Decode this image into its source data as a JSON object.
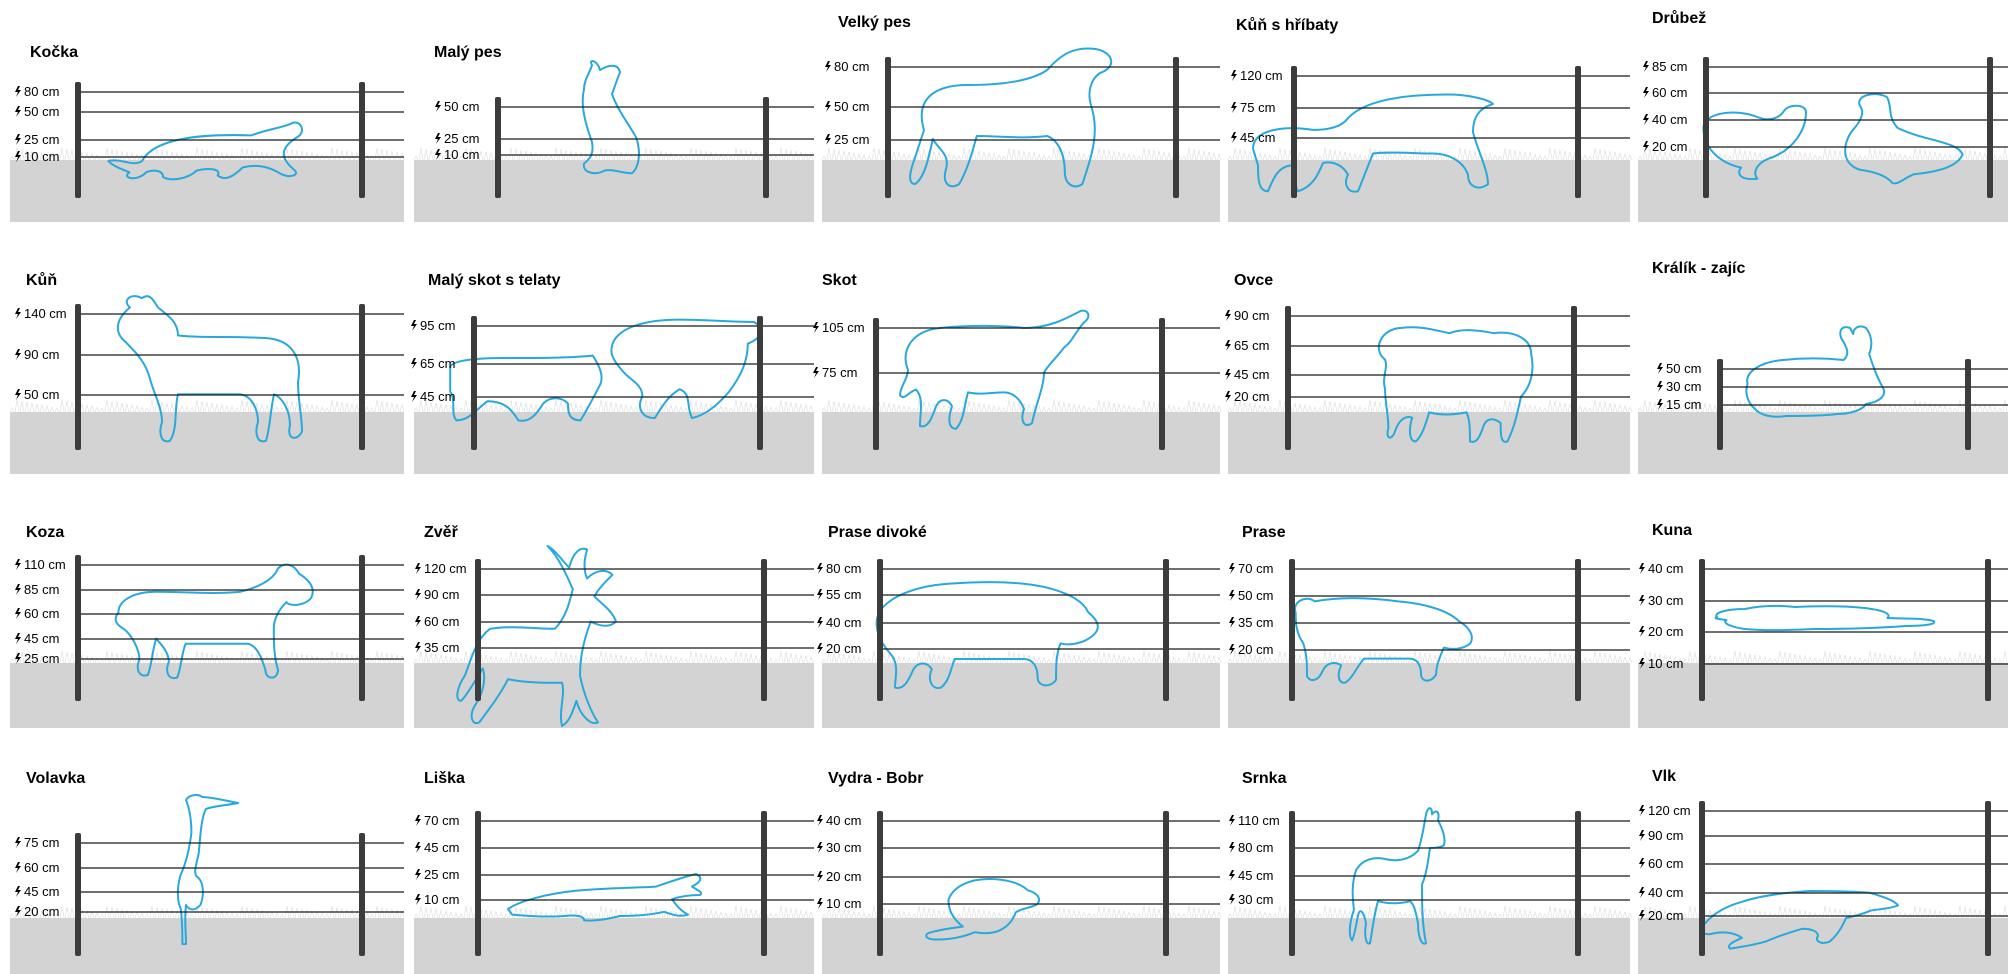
{
  "colors": {
    "animal_outline": "#29a8dc",
    "ground": "#d3d3d3",
    "post": "#3c3c3c",
    "wire": "#1a1a1a",
    "grass": "#ffffff"
  },
  "panels": [
    {
      "id": "kocka",
      "title": "Kočka",
      "animal_icon": "cat-outline-icon",
      "wires": [
        "80 cm",
        "50 cm",
        "25 cm",
        "10 cm"
      ]
    },
    {
      "id": "maly-pes",
      "title": "Malý pes",
      "animal_icon": "small-dog-outline-icon",
      "wires": [
        "50 cm",
        "25 cm",
        "10 cm"
      ]
    },
    {
      "id": "velky-pes",
      "title": "Velký pes",
      "animal_icon": "large-dog-outline-icon",
      "wires": [
        "80 cm",
        "50 cm",
        "25 cm"
      ]
    },
    {
      "id": "kun-s-hribaty",
      "title": "Kůň s hříbaty",
      "animal_icon": "horse-with-foal-outline-icon",
      "wires": [
        "120 cm",
        "75 cm",
        "45 cm"
      ]
    },
    {
      "id": "drubez",
      "title": "Drůbež",
      "animal_icon": "poultry-outline-icon",
      "wires": [
        "85 cm",
        "60 cm",
        "40 cm",
        "20 cm"
      ]
    },
    {
      "id": "kun",
      "title": "Kůň",
      "animal_icon": "horse-outline-icon",
      "wires": [
        "140 cm",
        "90 cm",
        "50 cm"
      ]
    },
    {
      "id": "maly-skot",
      "title": "Malý skot s telaty",
      "animal_icon": "small-cattle-with-calves-outline-icon",
      "wires": [
        "95 cm",
        "65 cm",
        "45 cm"
      ]
    },
    {
      "id": "skot",
      "title": "Skot",
      "animal_icon": "cattle-outline-icon",
      "wires": [
        "105 cm",
        "75 cm"
      ]
    },
    {
      "id": "ovce",
      "title": "Ovce",
      "animal_icon": "sheep-outline-icon",
      "wires": [
        "90 cm",
        "65 cm",
        "45 cm",
        "20 cm"
      ]
    },
    {
      "id": "kralik",
      "title": "Králík - zajíc",
      "animal_icon": "rabbit-outline-icon",
      "wires": [
        "50 cm",
        "30 cm",
        "15 cm"
      ]
    },
    {
      "id": "koza",
      "title": "Koza",
      "animal_icon": "goat-outline-icon",
      "wires": [
        "110 cm",
        "85 cm",
        "60 cm",
        "45 cm",
        "25 cm"
      ]
    },
    {
      "id": "zver",
      "title": "Zvěř",
      "animal_icon": "deer-outline-icon",
      "wires": [
        "120 cm",
        "90 cm",
        "60 cm",
        "35 cm"
      ]
    },
    {
      "id": "prase-divoke",
      "title": "Prase divoké",
      "animal_icon": "wild-boar-outline-icon",
      "wires": [
        "80 cm",
        "55 cm",
        "40 cm",
        "20 cm"
      ]
    },
    {
      "id": "prase",
      "title": "Prase",
      "animal_icon": "pig-outline-icon",
      "wires": [
        "70 cm",
        "50 cm",
        "35 cm",
        "20 cm"
      ]
    },
    {
      "id": "kuna",
      "title": "Kuna",
      "animal_icon": "marten-outline-icon",
      "wires": [
        "40 cm",
        "30 cm",
        "20 cm",
        "10 cm"
      ]
    },
    {
      "id": "volavka",
      "title": "Volavka",
      "animal_icon": "heron-outline-icon",
      "wires": [
        "75 cm",
        "60 cm",
        "45 cm",
        "20 cm"
      ]
    },
    {
      "id": "liska",
      "title": "Liška",
      "animal_icon": "fox-outline-icon",
      "wires": [
        "70 cm",
        "45 cm",
        "25 cm",
        "10 cm"
      ]
    },
    {
      "id": "vydra-bobr",
      "title": "Vydra - Bobr",
      "animal_icon": "otter-beaver-outline-icon",
      "wires": [
        "40 cm",
        "30 cm",
        "20 cm",
        "10 cm"
      ]
    },
    {
      "id": "srnka",
      "title": "Srnka",
      "animal_icon": "roe-deer-outline-icon",
      "wires": [
        "110 cm",
        "80 cm",
        "45 cm",
        "30 cm"
      ]
    },
    {
      "id": "vlk",
      "title": "Vlk",
      "animal_icon": "wolf-outline-icon",
      "wires": [
        "120 cm",
        "90 cm",
        "60 cm",
        "40 cm",
        "20 cm"
      ]
    }
  ]
}
